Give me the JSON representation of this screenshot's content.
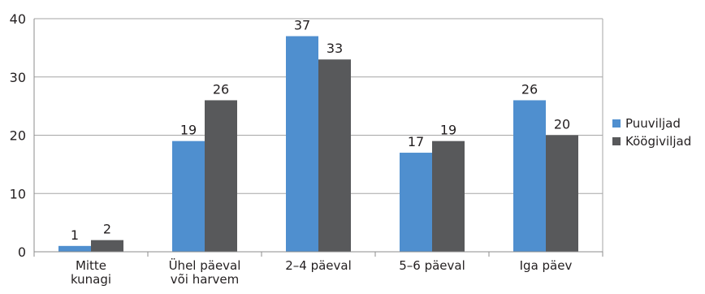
{
  "chart_data": {
    "type": "bar",
    "categories": [
      [
        "Mitte",
        "kunagi"
      ],
      [
        "Ühel päeval",
        "või harvem"
      ],
      [
        "2–4 päeval"
      ],
      [
        "5–6 päeval"
      ],
      [
        "Iga päev"
      ]
    ],
    "series": [
      {
        "name": "Puuviljad",
        "color": "#4f8fcf",
        "values": [
          1,
          19,
          37,
          17,
          26
        ]
      },
      {
        "name": "Köögiviljad",
        "color": "#58595b",
        "values": [
          2,
          26,
          33,
          19,
          20
        ]
      }
    ],
    "y_ticks": [
      0,
      10,
      20,
      30,
      40
    ],
    "ylim": [
      0,
      40
    ],
    "grid": true,
    "legend_position": "right",
    "title": "",
    "xlabel": "",
    "ylabel": ""
  }
}
